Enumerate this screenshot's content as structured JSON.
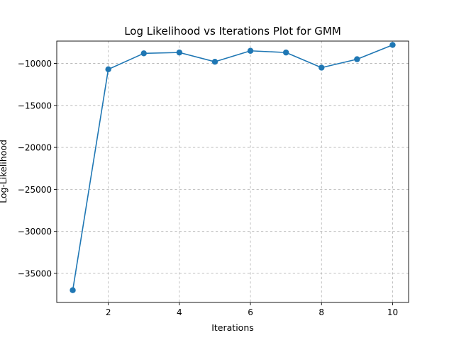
{
  "chart_data": {
    "type": "line",
    "title": "Log Likelihood vs Iterations Plot for GMM",
    "xlabel": "Iterations",
    "ylabel": "Log-Likelihood",
    "x": [
      1,
      2,
      3,
      4,
      5,
      6,
      7,
      8,
      9,
      10
    ],
    "series": [
      {
        "values": [
          -37000,
          -10700,
          -8800,
          -8700,
          -9800,
          -8500,
          -8700,
          -10500,
          -9500,
          -7800
        ],
        "color": "#1f77b4",
        "marker": "circle"
      }
    ],
    "xlim": [
      0.55,
      10.45
    ],
    "ylim": [
      -38460,
      -7340
    ],
    "xticks": [
      2,
      4,
      6,
      8,
      10
    ],
    "xtick_labels": [
      "2",
      "4",
      "6",
      "8",
      "10"
    ],
    "yticks": [
      -35000,
      -30000,
      -25000,
      -20000,
      -15000,
      -10000
    ],
    "ytick_labels": [
      "−35000",
      "−30000",
      "−25000",
      "−20000",
      "−15000",
      "−10000"
    ],
    "grid": true,
    "grid_style": "dashed"
  }
}
